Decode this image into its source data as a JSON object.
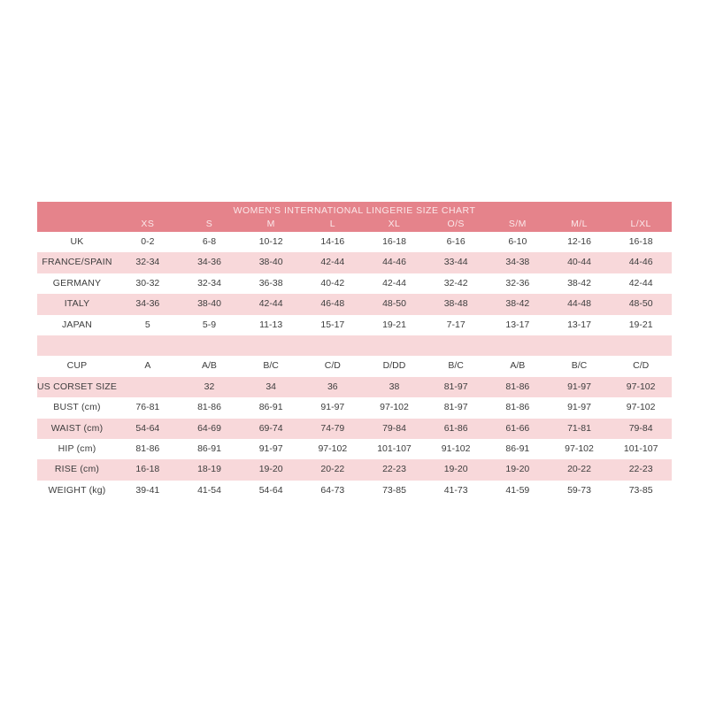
{
  "chart_data": {
    "type": "table",
    "title": "WOMEN'S INTERNATIONAL LINGERIE SIZE CHART",
    "columns": [
      "XS",
      "S",
      "M",
      "L",
      "XL",
      "O/S",
      "S/M",
      "M/L",
      "L/XL"
    ],
    "rows": [
      {
        "label": "UK",
        "values": [
          "0-2",
          "6-8",
          "10-12",
          "14-16",
          "16-18",
          "6-16",
          "6-10",
          "12-16",
          "16-18"
        ]
      },
      {
        "label": "FRANCE/SPAIN",
        "values": [
          "32-34",
          "34-36",
          "38-40",
          "42-44",
          "44-46",
          "33-44",
          "34-38",
          "40-44",
          "44-46"
        ]
      },
      {
        "label": "GERMANY",
        "values": [
          "30-32",
          "32-34",
          "36-38",
          "40-42",
          "42-44",
          "32-42",
          "32-36",
          "38-42",
          "42-44"
        ]
      },
      {
        "label": "ITALY",
        "values": [
          "34-36",
          "38-40",
          "42-44",
          "46-48",
          "48-50",
          "38-48",
          "38-42",
          "44-48",
          "48-50"
        ]
      },
      {
        "label": "JAPAN",
        "values": [
          "5",
          "5-9",
          "11-13",
          "15-17",
          "19-21",
          "7-17",
          "13-17",
          "13-17",
          "19-21"
        ]
      },
      {
        "label": "",
        "values": [
          "",
          "",
          "",
          "",
          "",
          "",
          "",
          "",
          ""
        ]
      },
      {
        "label": "CUP",
        "values": [
          "A",
          "A/B",
          "B/C",
          "C/D",
          "D/DD",
          "B/C",
          "A/B",
          "B/C",
          "C/D"
        ]
      },
      {
        "label": "US CORSET SIZE",
        "values": [
          "",
          "32",
          "34",
          "36",
          "38",
          "81-97",
          "81-86",
          "91-97",
          "97-102"
        ]
      },
      {
        "label": "BUST (cm)",
        "values": [
          "76-81",
          "81-86",
          "86-91",
          "91-97",
          "97-102",
          "81-97",
          "81-86",
          "91-97",
          "97-102"
        ]
      },
      {
        "label": "WAIST (cm)",
        "values": [
          "54-64",
          "64-69",
          "69-74",
          "74-79",
          "79-84",
          "61-86",
          "61-66",
          "71-81",
          "79-84"
        ]
      },
      {
        "label": "HIP (cm)",
        "values": [
          "81-86",
          "86-91",
          "91-97",
          "97-102",
          "101-107",
          "91-102",
          "86-91",
          "97-102",
          "101-107"
        ]
      },
      {
        "label": "RISE (cm)",
        "values": [
          "16-18",
          "18-19",
          "19-20",
          "20-22",
          "22-23",
          "19-20",
          "19-20",
          "20-22",
          "22-23"
        ]
      },
      {
        "label": "WEIGHT (kg)",
        "values": [
          "39-41",
          "41-54",
          "54-64",
          "64-73",
          "73-85",
          "41-73",
          "41-59",
          "59-73",
          "73-85"
        ]
      }
    ],
    "layout_hints": {
      "header_band": "title and column headers share one salmon band",
      "row_striping": "alternating white and light pink, starting white",
      "grid": "off"
    }
  },
  "colors": {
    "header_bg": "#e5838b",
    "header_text": "#fbe8ea",
    "row_alt_bg": "#f8d8da",
    "body_text": "#3d3d3d",
    "page_bg": "#ffffff"
  }
}
